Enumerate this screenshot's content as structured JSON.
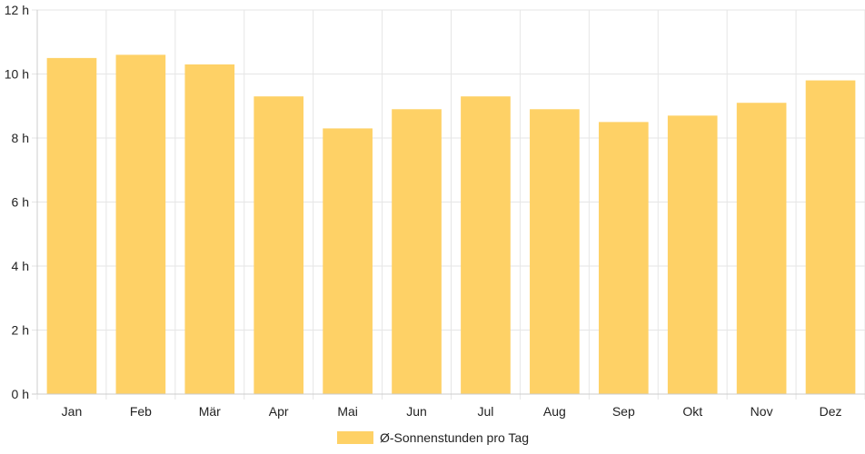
{
  "chart_data": {
    "type": "bar",
    "categories": [
      "Jan",
      "Feb",
      "Mär",
      "Apr",
      "Mai",
      "Jun",
      "Jul",
      "Aug",
      "Sep",
      "Okt",
      "Nov",
      "Dez"
    ],
    "series": [
      {
        "name": "Ø-Sonnenstunden pro Tag",
        "values": [
          10.5,
          10.6,
          10.3,
          9.3,
          8.3,
          8.9,
          9.3,
          8.9,
          8.5,
          8.7,
          9.1,
          9.8
        ],
        "color": "#fed166"
      }
    ],
    "y_ticks": [
      "0 h",
      "2 h",
      "4 h",
      "6 h",
      "8 h",
      "10 h",
      "12 h"
    ],
    "ylim": [
      0,
      12
    ],
    "grid": true,
    "legend_position": "bottom"
  }
}
